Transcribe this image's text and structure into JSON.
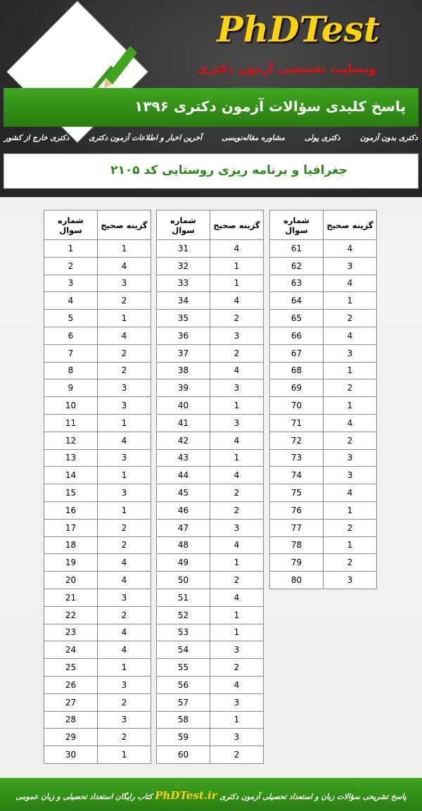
{
  "header": {
    "logo": "PhDTest",
    "tagline": "وبسایت تخصصی آزمون دکتری",
    "banner": "پاسخ کلیدی سؤالات آزمون دکتری ۱۳۹۶"
  },
  "nav": [
    "دکتری بدون آزمون",
    "دکتری پولی",
    "مشاوره مقاله‌نویسی",
    "آخرین اخبار و اطلاعات آزمون دکتری",
    "دکتری خارج از کشور"
  ],
  "subject": "جغرافیا و برنامه ریزی روستایی  کد ۲۱۰۵",
  "table": {
    "columns": [
      "شماره سوال",
      "گزینه صحیح"
    ],
    "groups": [
      [
        [
          1,
          1
        ],
        [
          2,
          4
        ],
        [
          3,
          3
        ],
        [
          4,
          2
        ],
        [
          5,
          1
        ],
        [
          6,
          4
        ],
        [
          7,
          2
        ],
        [
          8,
          2
        ],
        [
          9,
          3
        ],
        [
          10,
          3
        ],
        [
          11,
          1
        ],
        [
          12,
          4
        ],
        [
          13,
          3
        ],
        [
          14,
          1
        ],
        [
          15,
          3
        ],
        [
          16,
          1
        ],
        [
          17,
          2
        ],
        [
          18,
          2
        ],
        [
          19,
          4
        ],
        [
          20,
          4
        ],
        [
          21,
          3
        ],
        [
          22,
          2
        ],
        [
          23,
          4
        ],
        [
          24,
          4
        ],
        [
          25,
          1
        ],
        [
          26,
          3
        ],
        [
          27,
          2
        ],
        [
          28,
          3
        ],
        [
          29,
          2
        ],
        [
          30,
          1
        ]
      ],
      [
        [
          31,
          4
        ],
        [
          32,
          1
        ],
        [
          33,
          1
        ],
        [
          34,
          4
        ],
        [
          35,
          2
        ],
        [
          36,
          3
        ],
        [
          37,
          2
        ],
        [
          38,
          4
        ],
        [
          39,
          3
        ],
        [
          40,
          1
        ],
        [
          41,
          3
        ],
        [
          42,
          4
        ],
        [
          43,
          1
        ],
        [
          44,
          4
        ],
        [
          45,
          2
        ],
        [
          46,
          2
        ],
        [
          47,
          3
        ],
        [
          48,
          4
        ],
        [
          49,
          1
        ],
        [
          50,
          2
        ],
        [
          51,
          4
        ],
        [
          52,
          1
        ],
        [
          53,
          1
        ],
        [
          54,
          3
        ],
        [
          55,
          2
        ],
        [
          56,
          4
        ],
        [
          57,
          3
        ],
        [
          58,
          1
        ],
        [
          59,
          3
        ],
        [
          60,
          2
        ]
      ],
      [
        [
          61,
          4
        ],
        [
          62,
          3
        ],
        [
          63,
          4
        ],
        [
          64,
          1
        ],
        [
          65,
          2
        ],
        [
          66,
          4
        ],
        [
          67,
          3
        ],
        [
          68,
          1
        ],
        [
          69,
          2
        ],
        [
          70,
          1
        ],
        [
          71,
          4
        ],
        [
          72,
          2
        ],
        [
          73,
          3
        ],
        [
          74,
          3
        ],
        [
          75,
          4
        ],
        [
          76,
          1
        ],
        [
          77,
          2
        ],
        [
          78,
          1
        ],
        [
          79,
          2
        ],
        [
          80,
          3
        ]
      ]
    ]
  },
  "footer": {
    "right_text": "پاسخ تشریحی سؤالات زبان و استعداد تحصیلی آزمون دکتری",
    "site": "PhDTest.ir",
    "left_text": "کتاب رایگان استعداد تحصیلی و زبان عمومی"
  }
}
